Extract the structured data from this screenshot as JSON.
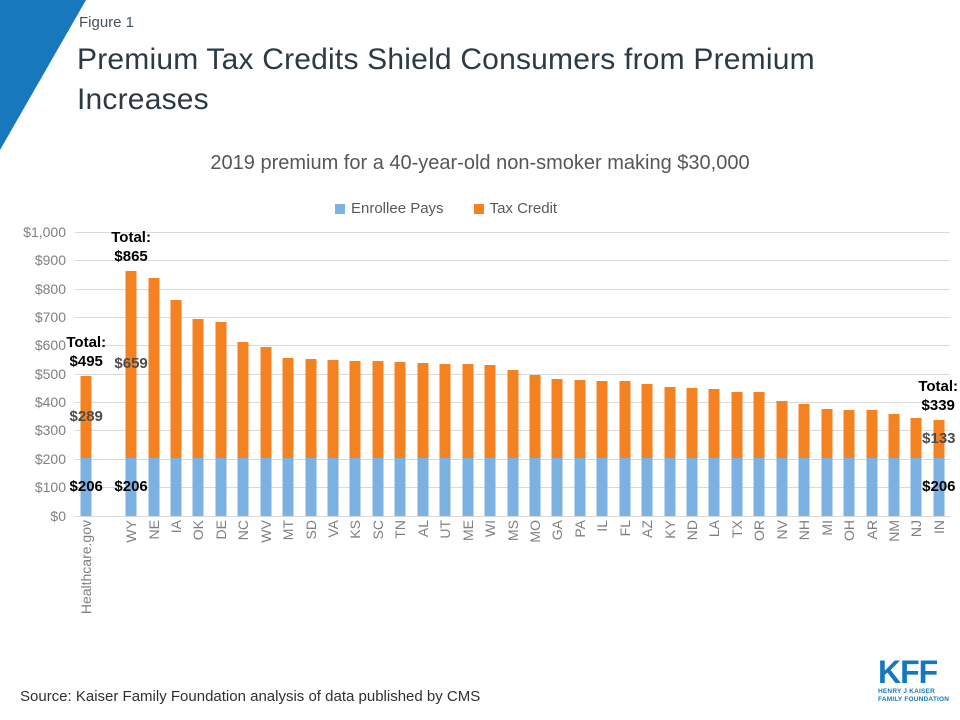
{
  "figure_label": "Figure 1",
  "title": "Premium Tax Credits Shield Consumers from Premium Increases",
  "title_lines": [
    "Premium Tax Credits Shield Consumers from Premium",
    "Increases"
  ],
  "subtitle": "2019 premium for a 40-year-old non-smoker making $30,000",
  "legend": [
    {
      "label": "Enrollee Pays",
      "color": "#7cb2e1"
    },
    {
      "label": "Tax Credit",
      "color": "#f58220"
    }
  ],
  "colors": {
    "enrollee_bar": "#7cb2e1",
    "tax_credit_bar": "#f58220",
    "corner_accent": "#1878be",
    "gridline": "#d9d9d9",
    "axis_text": "#808080",
    "kff_blue": "#1478be"
  },
  "chart_data": {
    "type": "bar",
    "stacked": true,
    "title": "2019 premium for a 40-year-old non-smoker making $30,000",
    "xlabel": "",
    "ylabel": "",
    "ylim": [
      0,
      1000
    ],
    "grid": true,
    "legend_position": "top-center",
    "y_ticks": [
      "$1,000",
      "$900",
      "$800",
      "$700",
      "$600",
      "$500",
      "$400",
      "$300",
      "$200",
      "$100",
      "$0"
    ],
    "gap_after_first_category": true,
    "categories": [
      "Healthcare.gov",
      "WY",
      "NE",
      "IA",
      "OK",
      "DE",
      "NC",
      "WV",
      "MT",
      "SD",
      "VA",
      "KS",
      "SC",
      "TN",
      "AL",
      "UT",
      "ME",
      "WI",
      "MS",
      "MO",
      "GA",
      "PA",
      "IL",
      "FL",
      "AZ",
      "KY",
      "ND",
      "LA",
      "TX",
      "OR",
      "NV",
      "NH",
      "MI",
      "OH",
      "AR",
      "NM",
      "NJ",
      "IN"
    ],
    "series": [
      {
        "name": "Enrollee Pays",
        "color": "#7cb2e1",
        "values": [
          206,
          206,
          206,
          206,
          206,
          206,
          206,
          206,
          206,
          206,
          206,
          206,
          206,
          206,
          206,
          206,
          206,
          206,
          206,
          206,
          206,
          206,
          206,
          206,
          206,
          206,
          206,
          206,
          206,
          206,
          206,
          206,
          206,
          206,
          206,
          206,
          206,
          206
        ]
      },
      {
        "name": "Tax Credit",
        "color": "#f58220",
        "values": [
          289,
          659,
          632,
          556,
          490,
          480,
          407,
          390,
          351,
          348,
          345,
          342,
          340,
          338,
          335,
          332,
          329,
          325,
          310,
          290,
          279,
          275,
          271,
          269,
          261,
          250,
          246,
          242,
          233,
          231,
          198,
          189,
          171,
          169,
          167,
          153,
          139,
          133
        ]
      }
    ],
    "totals": [
      495,
      865,
      838,
      762,
      696,
      686,
      613,
      596,
      557,
      554,
      551,
      548,
      546,
      544,
      541,
      538,
      535,
      531,
      516,
      496,
      485,
      481,
      477,
      475,
      467,
      456,
      452,
      448,
      439,
      437,
      404,
      395,
      377,
      375,
      373,
      359,
      345,
      339
    ],
    "annotations": {
      "Healthcare.gov": {
        "total_line1": "Total:",
        "total_line2": "$495",
        "credit": "$289",
        "enrollee": "$206",
        "total_align": "center"
      },
      "WY": {
        "total_line1": "Total:",
        "total_line2": "$865",
        "credit": "$659",
        "enrollee": "$206",
        "total_align": "center"
      },
      "IN": {
        "total_line1": "Total:",
        "total_line2": "$339",
        "credit": "$133",
        "enrollee": "$206",
        "total_align": "right"
      }
    }
  },
  "source": "Source: Kaiser Family Foundation analysis of data published by CMS",
  "logo": {
    "text": "KFF",
    "tagline_line1": "HENRY J KAISER",
    "tagline_line2": "FAMILY FOUNDATION"
  }
}
